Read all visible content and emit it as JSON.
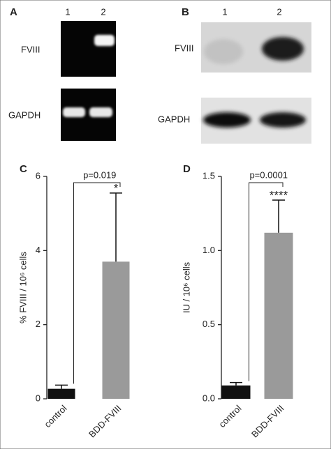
{
  "panels": {
    "A": {
      "letter": "A",
      "lanes": [
        "1",
        "2"
      ],
      "top_label": "FVIII",
      "bottom_label": "GAPDH"
    },
    "B": {
      "letter": "B",
      "lanes": [
        "1",
        "2"
      ],
      "top_label": "FVIII",
      "bottom_label": "GAPDH"
    }
  },
  "chart_data": [
    {
      "type": "bar",
      "panel": "C",
      "ylabel": "% FVIII / 10⁶ cells",
      "categories": [
        "control",
        "BDD-FVIII"
      ],
      "values": [
        0.27,
        3.7
      ],
      "errors": [
        0.1,
        1.85
      ],
      "colors": [
        "#111111",
        "#9a9a9a"
      ],
      "ylim": [
        0,
        6
      ],
      "yticks": [
        0,
        2,
        4,
        6
      ],
      "p_value": "p=0.019",
      "significance": "*"
    },
    {
      "type": "bar",
      "panel": "D",
      "ylabel": "IU / 10⁶ cells",
      "categories": [
        "control",
        "BDD-FVIII"
      ],
      "values": [
        0.09,
        1.12
      ],
      "errors": [
        0.02,
        0.22
      ],
      "colors": [
        "#111111",
        "#9a9a9a"
      ],
      "ylim": [
        0,
        1.5
      ],
      "yticks": [
        {
          "value": 0,
          "label": "0.0"
        },
        0.5,
        {
          "value": 1,
          "label": "1.0"
        },
        1.5
      ],
      "p_value": "p=0.0001",
      "significance": "****"
    }
  ]
}
